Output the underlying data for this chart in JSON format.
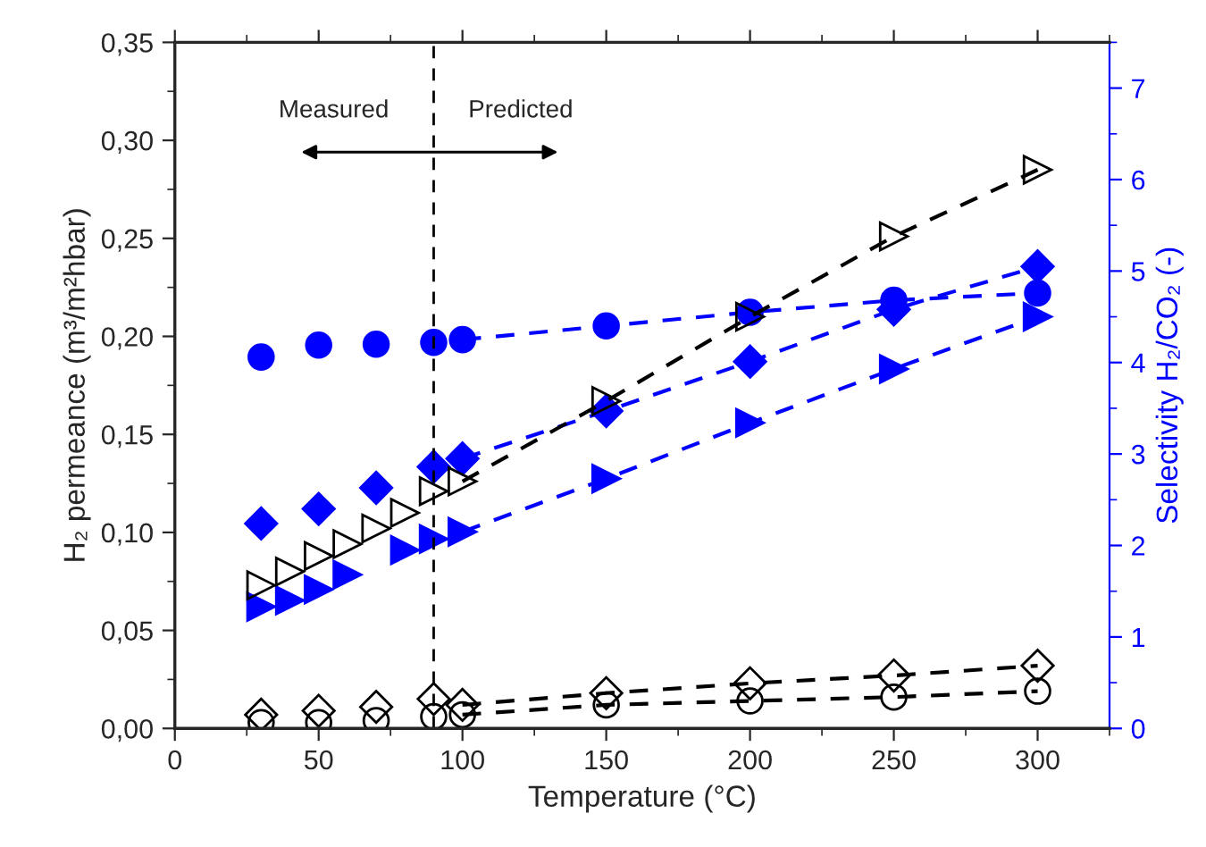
{
  "chart_data": {
    "type": "line",
    "xlabel": "Temperature (°C)",
    "ylabel": "H₂ permeance (m³/m²hbar)",
    "y2label": "Selectivity H₂/CO₂ (-)",
    "xlim": [
      0,
      325
    ],
    "xticks": [
      0,
      50,
      100,
      150,
      200,
      250,
      300
    ],
    "ylim": [
      0,
      0.35
    ],
    "yticks": [
      {
        "value": 0,
        "label": "0,00"
      },
      {
        "value": 0.05,
        "label": "0,05"
      },
      {
        "value": 0.1,
        "label": "0,10"
      },
      {
        "value": 0.15,
        "label": "0,15"
      },
      {
        "value": 0.2,
        "label": "0,20"
      },
      {
        "value": 0.25,
        "label": "0,25"
      },
      {
        "value": 0.3,
        "label": "0,30"
      },
      {
        "value": 0.35,
        "label": "0,35"
      }
    ],
    "y2lim": [
      0,
      7.5
    ],
    "y2ticks": [
      0,
      1,
      2,
      3,
      4,
      5,
      6,
      7
    ],
    "ref_lines": [
      {
        "axis": "x",
        "value": 90,
        "color": "#000000",
        "line_style": "dashed"
      }
    ],
    "annotations": [
      "Measured",
      "Predicted"
    ],
    "series": [
      {
        "type": "scatter",
        "color": "#000000",
        "marker": "triangle",
        "x": [
          30,
          40,
          50,
          60,
          70,
          80,
          90
        ],
        "values": [
          0.073,
          0.08,
          0.088,
          0.094,
          0.102,
          0.11,
          0.121
        ]
      },
      {
        "color": "#000000",
        "marker": "triangle",
        "line_style": "dashed",
        "x": [
          100,
          150,
          200,
          250,
          300
        ],
        "values": [
          0.126,
          0.167,
          0.21,
          0.251,
          0.285
        ]
      },
      {
        "type": "scatter",
        "color": "#000000",
        "marker": "circle",
        "x": [
          30,
          50,
          70,
          90
        ],
        "values": [
          0.003,
          0.003,
          0.004,
          0.006
        ]
      },
      {
        "color": "#000000",
        "marker": "circle",
        "line_style": "dashed",
        "x": [
          100,
          150,
          200,
          250,
          300
        ],
        "values": [
          0.007,
          0.012,
          0.014,
          0.016,
          0.019
        ]
      },
      {
        "type": "scatter",
        "color": "#000000",
        "marker": "diamond",
        "x": [
          30,
          50,
          70,
          90
        ],
        "values": [
          0.007,
          0.009,
          0.011,
          0.015
        ]
      },
      {
        "color": "#000000",
        "marker": "diamond",
        "line_style": "dashed",
        "x": [
          100,
          150,
          200,
          250,
          300
        ],
        "values": [
          0.012,
          0.018,
          0.023,
          0.027,
          0.032
        ]
      },
      {
        "type": "scatter",
        "axis": "y2",
        "color": "#0000ff",
        "marker": "diamond",
        "x": [
          30,
          50,
          70,
          90
        ],
        "values": [
          2.24,
          2.4,
          2.63,
          2.86
        ]
      },
      {
        "axis": "y2",
        "color": "#0000ff",
        "marker": "diamond",
        "line_style": "dashed",
        "x": [
          100,
          150,
          200,
          250,
          300
        ],
        "values": [
          2.95,
          3.47,
          4.01,
          4.58,
          5.05
        ]
      },
      {
        "type": "scatter",
        "axis": "y2",
        "color": "#0000ff",
        "marker": "triangle",
        "x": [
          30,
          40,
          50,
          60,
          80,
          90
        ],
        "values": [
          1.33,
          1.4,
          1.52,
          1.68,
          1.95,
          2.07
        ]
      },
      {
        "axis": "y2",
        "color": "#0000ff",
        "marker": "triangle",
        "line_style": "dashed",
        "x": [
          100,
          150,
          200,
          250,
          300
        ],
        "values": [
          2.15,
          2.73,
          3.34,
          3.93,
          4.5
        ]
      },
      {
        "type": "scatter",
        "axis": "y2",
        "color": "#0000ff",
        "marker": "circle",
        "x": [
          30,
          50,
          70,
          90
        ],
        "values": [
          4.06,
          4.19,
          4.2,
          4.22
        ]
      },
      {
        "axis": "y2",
        "color": "#0000ff",
        "marker": "circle",
        "line_style": "dashed",
        "x": [
          100,
          150,
          200,
          250,
          300
        ],
        "values": [
          4.25,
          4.4,
          4.55,
          4.68,
          4.76
        ]
      }
    ]
  }
}
